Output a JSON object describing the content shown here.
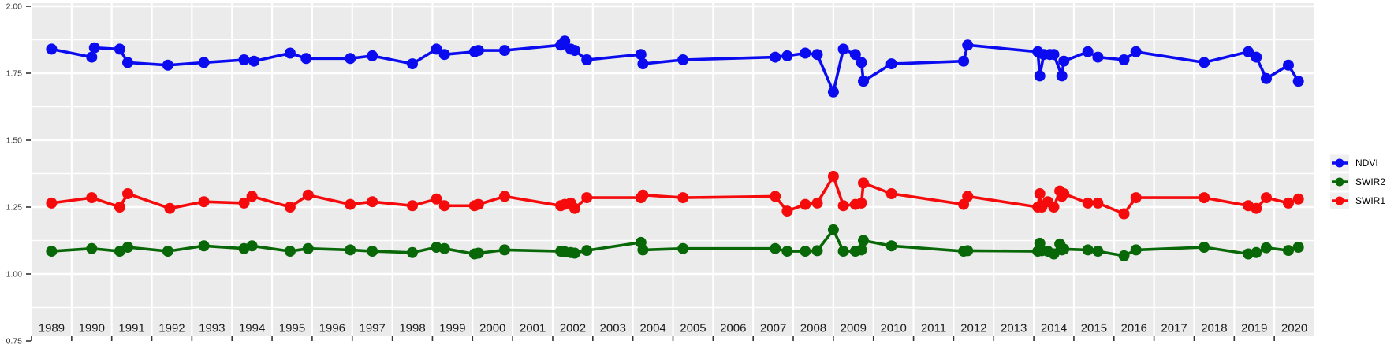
{
  "figure": {
    "background": "#ffffff",
    "panel_background": "#ebebeb",
    "grid_color": "#ffffff",
    "axis_text_color": "#333333",
    "year_label_color": "#1a1a1a",
    "tick_color": "#333333",
    "legend_key_background": "#efefef",
    "legend_text_color": "#000000"
  },
  "chart_data": {
    "type": "line",
    "title": "",
    "xlabel": "",
    "ylabel": "",
    "grid": true,
    "legend_position": "right-middle",
    "x_axis": {
      "xlim": [
        1989,
        2021
      ],
      "tick_years": [
        1989,
        1990,
        1991,
        1992,
        1993,
        1994,
        1995,
        1996,
        1997,
        1998,
        1999,
        2000,
        2001,
        2002,
        2003,
        2004,
        2005,
        2006,
        2007,
        2008,
        2009,
        2010,
        2011,
        2012,
        2013,
        2014,
        2015,
        2016,
        2017,
        2018,
        2019,
        2020
      ],
      "tick_labels": [
        "1989",
        "1990",
        "1991",
        "1992",
        "1993",
        "1994",
        "1995",
        "1996",
        "1997",
        "1998",
        "1999",
        "2000",
        "2001",
        "2002",
        "2003",
        "2004",
        "2005",
        "2006",
        "2007",
        "2008",
        "2009",
        "2010",
        "2011",
        "2012",
        "2013",
        "2014",
        "2015",
        "2016",
        "2017",
        "2018",
        "2019",
        "2020"
      ],
      "labels_centered_mid_year": true
    },
    "y_axis": {
      "ylim": [
        0.77,
        2.01
      ],
      "major_ticks": [
        2.0,
        1.75,
        1.5,
        1.25,
        1.0,
        0.75
      ],
      "tick_labels": [
        "2.00",
        "1.75",
        "1.50",
        "1.25",
        "1.00",
        "0.75"
      ],
      "minor_ticks": [
        1.875,
        1.625,
        1.375,
        1.125,
        0.875
      ]
    },
    "legend": {
      "entries": [
        "NDVI",
        "SWIR2",
        "SWIR1"
      ]
    },
    "series": [
      {
        "name": "NDVI",
        "color": "#0b0bf0",
        "points": [
          [
            1989.5,
            1.84
          ],
          [
            1990.5,
            1.81
          ],
          [
            1990.57,
            1.845
          ],
          [
            1991.2,
            1.84
          ],
          [
            1991.4,
            1.79
          ],
          [
            1992.4,
            1.78
          ],
          [
            1993.3,
            1.79
          ],
          [
            1994.3,
            1.8
          ],
          [
            1994.55,
            1.795
          ],
          [
            1995.45,
            1.825
          ],
          [
            1995.85,
            1.805
          ],
          [
            1996.95,
            1.805
          ],
          [
            1997.5,
            1.815
          ],
          [
            1998.5,
            1.785
          ],
          [
            1999.1,
            1.84
          ],
          [
            1999.3,
            1.82
          ],
          [
            2000.05,
            1.83
          ],
          [
            2000.15,
            1.835
          ],
          [
            2000.8,
            1.835
          ],
          [
            2002.2,
            1.855
          ],
          [
            2002.3,
            1.87
          ],
          [
            2002.45,
            1.84
          ],
          [
            2002.55,
            1.835
          ],
          [
            2002.85,
            1.8
          ],
          [
            2004.2,
            1.82
          ],
          [
            2004.25,
            1.785
          ],
          [
            2005.25,
            1.8
          ],
          [
            2007.55,
            1.81
          ],
          [
            2007.85,
            1.815
          ],
          [
            2008.3,
            1.825
          ],
          [
            2008.6,
            1.82
          ],
          [
            2009,
            1.68
          ],
          [
            2009.25,
            1.84
          ],
          [
            2009.55,
            1.82
          ],
          [
            2009.7,
            1.79
          ],
          [
            2009.75,
            1.72
          ],
          [
            2010.45,
            1.785
          ],
          [
            2012.25,
            1.795
          ],
          [
            2012.35,
            1.855
          ],
          [
            2014.1,
            1.83
          ],
          [
            2014.15,
            1.74
          ],
          [
            2014.25,
            1.82
          ],
          [
            2014.4,
            1.82
          ],
          [
            2014.5,
            1.82
          ],
          [
            2014.7,
            1.74
          ],
          [
            2014.75,
            1.795
          ],
          [
            2015.35,
            1.83
          ],
          [
            2015.6,
            1.81
          ],
          [
            2016.25,
            1.8
          ],
          [
            2016.55,
            1.83
          ],
          [
            2018.25,
            1.79
          ],
          [
            2019.35,
            1.83
          ],
          [
            2019.55,
            1.81
          ],
          [
            2019.8,
            1.73
          ],
          [
            2020.35,
            1.78
          ],
          [
            2020.6,
            1.72
          ]
        ]
      },
      {
        "name": "SWIR2",
        "color": "#086808",
        "points": [
          [
            1989.5,
            1.085
          ],
          [
            1990.5,
            1.095
          ],
          [
            1991.2,
            1.085
          ],
          [
            1991.4,
            1.1
          ],
          [
            1992.4,
            1.085
          ],
          [
            1993.3,
            1.105
          ],
          [
            1994.3,
            1.095
          ],
          [
            1994.5,
            1.105
          ],
          [
            1995.45,
            1.085
          ],
          [
            1995.9,
            1.095
          ],
          [
            1996.95,
            1.09
          ],
          [
            1997.5,
            1.085
          ],
          [
            1998.5,
            1.08
          ],
          [
            1999.1,
            1.1
          ],
          [
            1999.3,
            1.095
          ],
          [
            2000.05,
            1.075
          ],
          [
            2000.15,
            1.078
          ],
          [
            2000.8,
            1.09
          ],
          [
            2002.2,
            1.085
          ],
          [
            2002.3,
            1.083
          ],
          [
            2002.45,
            1.08
          ],
          [
            2002.55,
            1.078
          ],
          [
            2002.85,
            1.088
          ],
          [
            2004.2,
            1.118
          ],
          [
            2004.25,
            1.09
          ],
          [
            2005.25,
            1.095
          ],
          [
            2007.55,
            1.095
          ],
          [
            2007.85,
            1.085
          ],
          [
            2008.3,
            1.085
          ],
          [
            2008.6,
            1.087
          ],
          [
            2009,
            1.165
          ],
          [
            2009.25,
            1.085
          ],
          [
            2009.55,
            1.085
          ],
          [
            2009.7,
            1.09
          ],
          [
            2009.75,
            1.125
          ],
          [
            2010.45,
            1.105
          ],
          [
            2012.25,
            1.085
          ],
          [
            2012.35,
            1.087
          ],
          [
            2014.1,
            1.085
          ],
          [
            2014.15,
            1.115
          ],
          [
            2014.2,
            1.087
          ],
          [
            2014.35,
            1.085
          ],
          [
            2014.5,
            1.075
          ],
          [
            2014.65,
            1.112
          ],
          [
            2014.7,
            1.09
          ],
          [
            2014.75,
            1.093
          ],
          [
            2015.35,
            1.09
          ],
          [
            2015.6,
            1.085
          ],
          [
            2016.25,
            1.068
          ],
          [
            2016.55,
            1.09
          ],
          [
            2018.25,
            1.1
          ],
          [
            2019.35,
            1.075
          ],
          [
            2019.55,
            1.08
          ],
          [
            2019.8,
            1.098
          ],
          [
            2020.35,
            1.088
          ],
          [
            2020.6,
            1.1
          ]
        ]
      },
      {
        "name": "SWIR1",
        "color": "#f50b0b",
        "points": [
          [
            1989.5,
            1.265
          ],
          [
            1990.5,
            1.285
          ],
          [
            1991.2,
            1.25
          ],
          [
            1991.4,
            1.3
          ],
          [
            1992.45,
            1.245
          ],
          [
            1993.3,
            1.27
          ],
          [
            1994.3,
            1.265
          ],
          [
            1994.5,
            1.29
          ],
          [
            1995.45,
            1.25
          ],
          [
            1995.9,
            1.295
          ],
          [
            1996.95,
            1.26
          ],
          [
            1997.5,
            1.27
          ],
          [
            1998.5,
            1.255
          ],
          [
            1999.1,
            1.28
          ],
          [
            1999.3,
            1.255
          ],
          [
            2000.05,
            1.255
          ],
          [
            2000.15,
            1.26
          ],
          [
            2000.8,
            1.29
          ],
          [
            2002.2,
            1.255
          ],
          [
            2002.3,
            1.26
          ],
          [
            2002.45,
            1.265
          ],
          [
            2002.55,
            1.245
          ],
          [
            2002.85,
            1.285
          ],
          [
            2004.2,
            1.285
          ],
          [
            2004.25,
            1.295
          ],
          [
            2005.25,
            1.285
          ],
          [
            2007.55,
            1.29
          ],
          [
            2007.85,
            1.235
          ],
          [
            2008.3,
            1.26
          ],
          [
            2008.6,
            1.265
          ],
          [
            2009,
            1.365
          ],
          [
            2009.25,
            1.255
          ],
          [
            2009.55,
            1.26
          ],
          [
            2009.7,
            1.265
          ],
          [
            2009.75,
            1.34
          ],
          [
            2010.45,
            1.3
          ],
          [
            2012.25,
            1.26
          ],
          [
            2012.35,
            1.29
          ],
          [
            2014.1,
            1.25
          ],
          [
            2014.15,
            1.3
          ],
          [
            2014.2,
            1.25
          ],
          [
            2014.35,
            1.27
          ],
          [
            2014.5,
            1.25
          ],
          [
            2014.65,
            1.31
          ],
          [
            2014.7,
            1.29
          ],
          [
            2014.75,
            1.3
          ],
          [
            2015.35,
            1.265
          ],
          [
            2015.6,
            1.265
          ],
          [
            2016.25,
            1.225
          ],
          [
            2016.55,
            1.285
          ],
          [
            2018.25,
            1.285
          ],
          [
            2019.35,
            1.255
          ],
          [
            2019.55,
            1.245
          ],
          [
            2019.8,
            1.285
          ],
          [
            2020.35,
            1.265
          ],
          [
            2020.6,
            1.28
          ]
        ]
      }
    ]
  }
}
